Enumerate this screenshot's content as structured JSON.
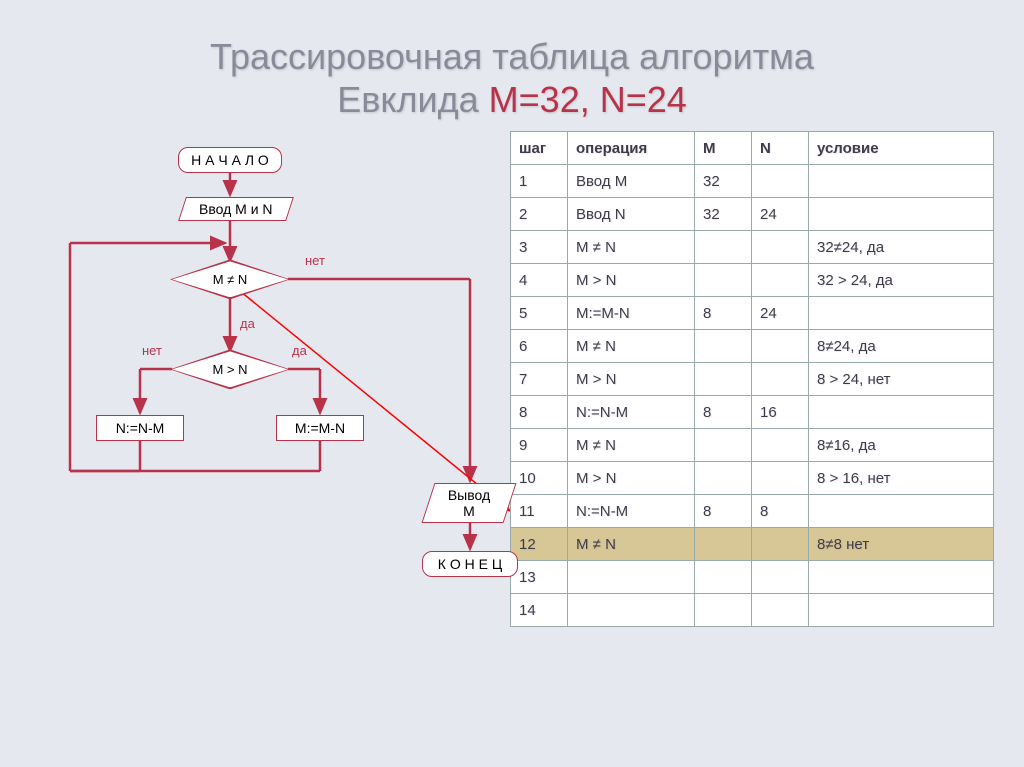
{
  "title_line1": "Трассировочная таблица алгоритма",
  "title_line2a": "Евклида ",
  "title_line2b": "M=32, N=24",
  "flowchart": {
    "start": "Н А Ч А Л О",
    "input": "Ввод M и N",
    "cond1": "M ≠ N",
    "cond2": "M > N",
    "assignN": "N:=N-M",
    "assignM": "M:=M-N",
    "output": "Вывод M",
    "end": "К О Н Е Ц",
    "no": "нет",
    "yes": "да",
    "colors": {
      "border": "#b8324a",
      "bg": "#ffffff",
      "arrow": "#b8324a",
      "red_arrow": "#ff0000"
    }
  },
  "table": {
    "headers": [
      "шаг",
      "операция",
      "M",
      "N",
      "условие"
    ],
    "rows": [
      [
        "1",
        "Ввод M",
        "32",
        "",
        ""
      ],
      [
        "2",
        "Ввод N",
        "32",
        "24",
        ""
      ],
      [
        "3",
        "M ≠ N",
        "",
        "",
        "32≠24, да"
      ],
      [
        "4",
        "M > N",
        "",
        "",
        "32 > 24, да"
      ],
      [
        "5",
        "M:=M-N",
        "8",
        "24",
        ""
      ],
      [
        "6",
        "M ≠ N",
        "",
        "",
        "8≠24, да"
      ],
      [
        "7",
        "M > N",
        "",
        "",
        "8 > 24, нет"
      ],
      [
        "8",
        "N:=N-M",
        "8",
        "16",
        ""
      ],
      [
        "9",
        "M ≠ N",
        "",
        "",
        "8≠16, да"
      ],
      [
        "10",
        "M > N",
        "",
        "",
        "8 > 16, нет"
      ],
      [
        "11",
        "N:=N-M",
        "8",
        "8",
        ""
      ],
      [
        "12",
        "M ≠ N",
        "",
        "",
        "8≠8 нет"
      ],
      [
        "13",
        "",
        "",
        "",
        ""
      ],
      [
        "14",
        "",
        "",
        "",
        ""
      ]
    ],
    "highlight_row": 11
  }
}
